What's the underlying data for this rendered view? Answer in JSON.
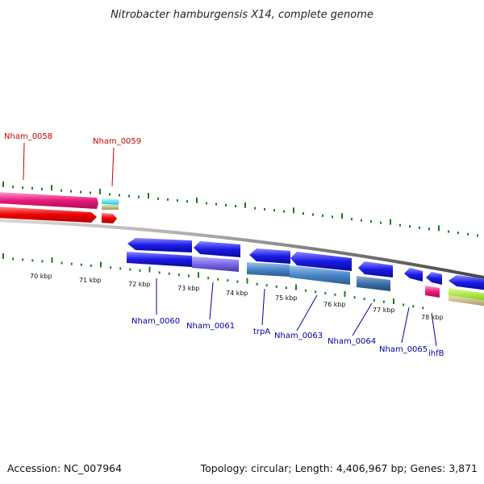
{
  "header": {
    "title": "Nitrobacter hamburgensis X14, complete genome"
  },
  "footer": {
    "accession": "Accession: NC_007964",
    "summary": "Topology: circular; Length: 4,406,967 bp; Genes: 3,871"
  },
  "colors": {
    "backbone": "#7d7d7d",
    "tick": "#1f7a1f",
    "label_red": "#cc0000",
    "label_blue": "#0000aa"
  },
  "ruler": {
    "labels": [
      "70 kbp",
      "71 kbp",
      "72 kbp",
      "73 kbp",
      "74 kbp",
      "75 kbp",
      "76 kbp",
      "77 kbp",
      "78 kbp"
    ]
  },
  "genes": [
    {
      "name": "Nham_0058",
      "strand": "forward",
      "color": "#e8197a"
    },
    {
      "name": "Nham_0059",
      "strand": "forward",
      "color": "#22d6e6"
    },
    {
      "name": "Nham_0060",
      "strand": "reverse",
      "color": "#1a1ae6"
    },
    {
      "name": "Nham_0061",
      "strand": "reverse",
      "color": "#1a1ae6"
    },
    {
      "name": "trpA",
      "strand": "reverse",
      "color": "#4a86c8"
    },
    {
      "name": "Nham_0063",
      "strand": "reverse",
      "color": "#1a1ae6"
    },
    {
      "name": "Nham_0064",
      "strand": "reverse",
      "color": "#1a1ae6"
    },
    {
      "name": "Nham_0065",
      "strand": "reverse",
      "color": "#1a1ae6"
    },
    {
      "name": "ihfB",
      "strand": "reverse",
      "color": "#1a1ae6"
    }
  ]
}
